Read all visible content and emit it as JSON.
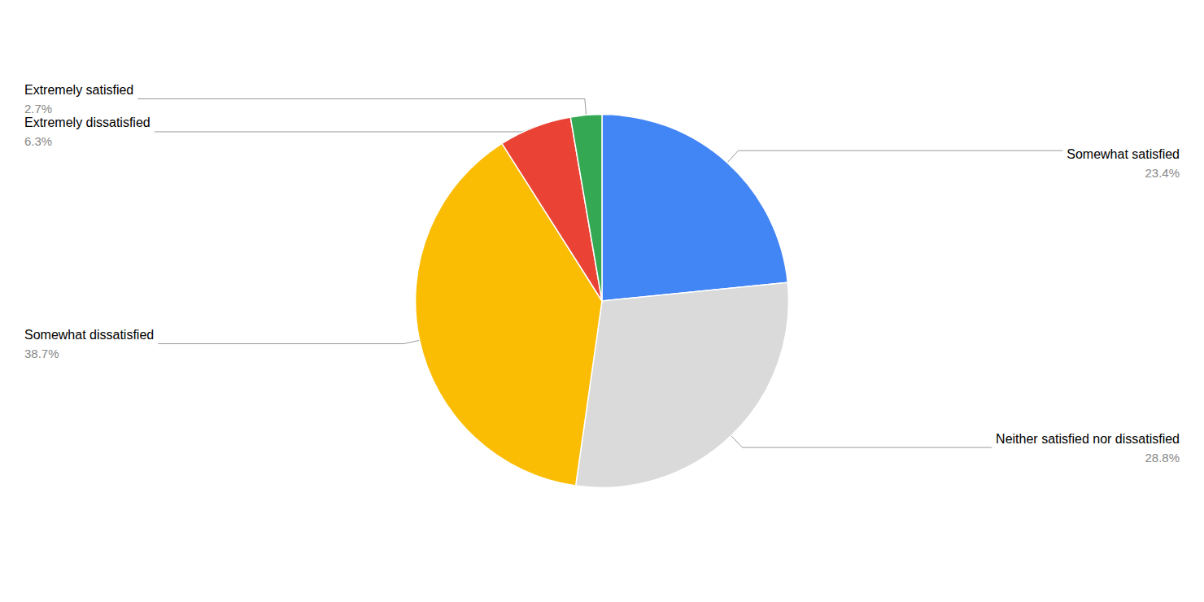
{
  "chart_data": {
    "type": "pie",
    "categories": [
      "Somewhat satisfied",
      "Neither satisfied nor dissatisfied",
      "Somewhat dissatisfied",
      "Extremely dissatisfied",
      "Extremely satisfied"
    ],
    "values": [
      23.4,
      28.8,
      38.7,
      6.3,
      2.7
    ],
    "value_labels": [
      "23.4%",
      "28.8%",
      "38.7%",
      "6.3%",
      "2.7%"
    ],
    "colors": [
      "#4285F4",
      "#DADADA",
      "#FBBC04",
      "#EA4335",
      "#34A853"
    ],
    "data_labels": true,
    "legend": null
  }
}
